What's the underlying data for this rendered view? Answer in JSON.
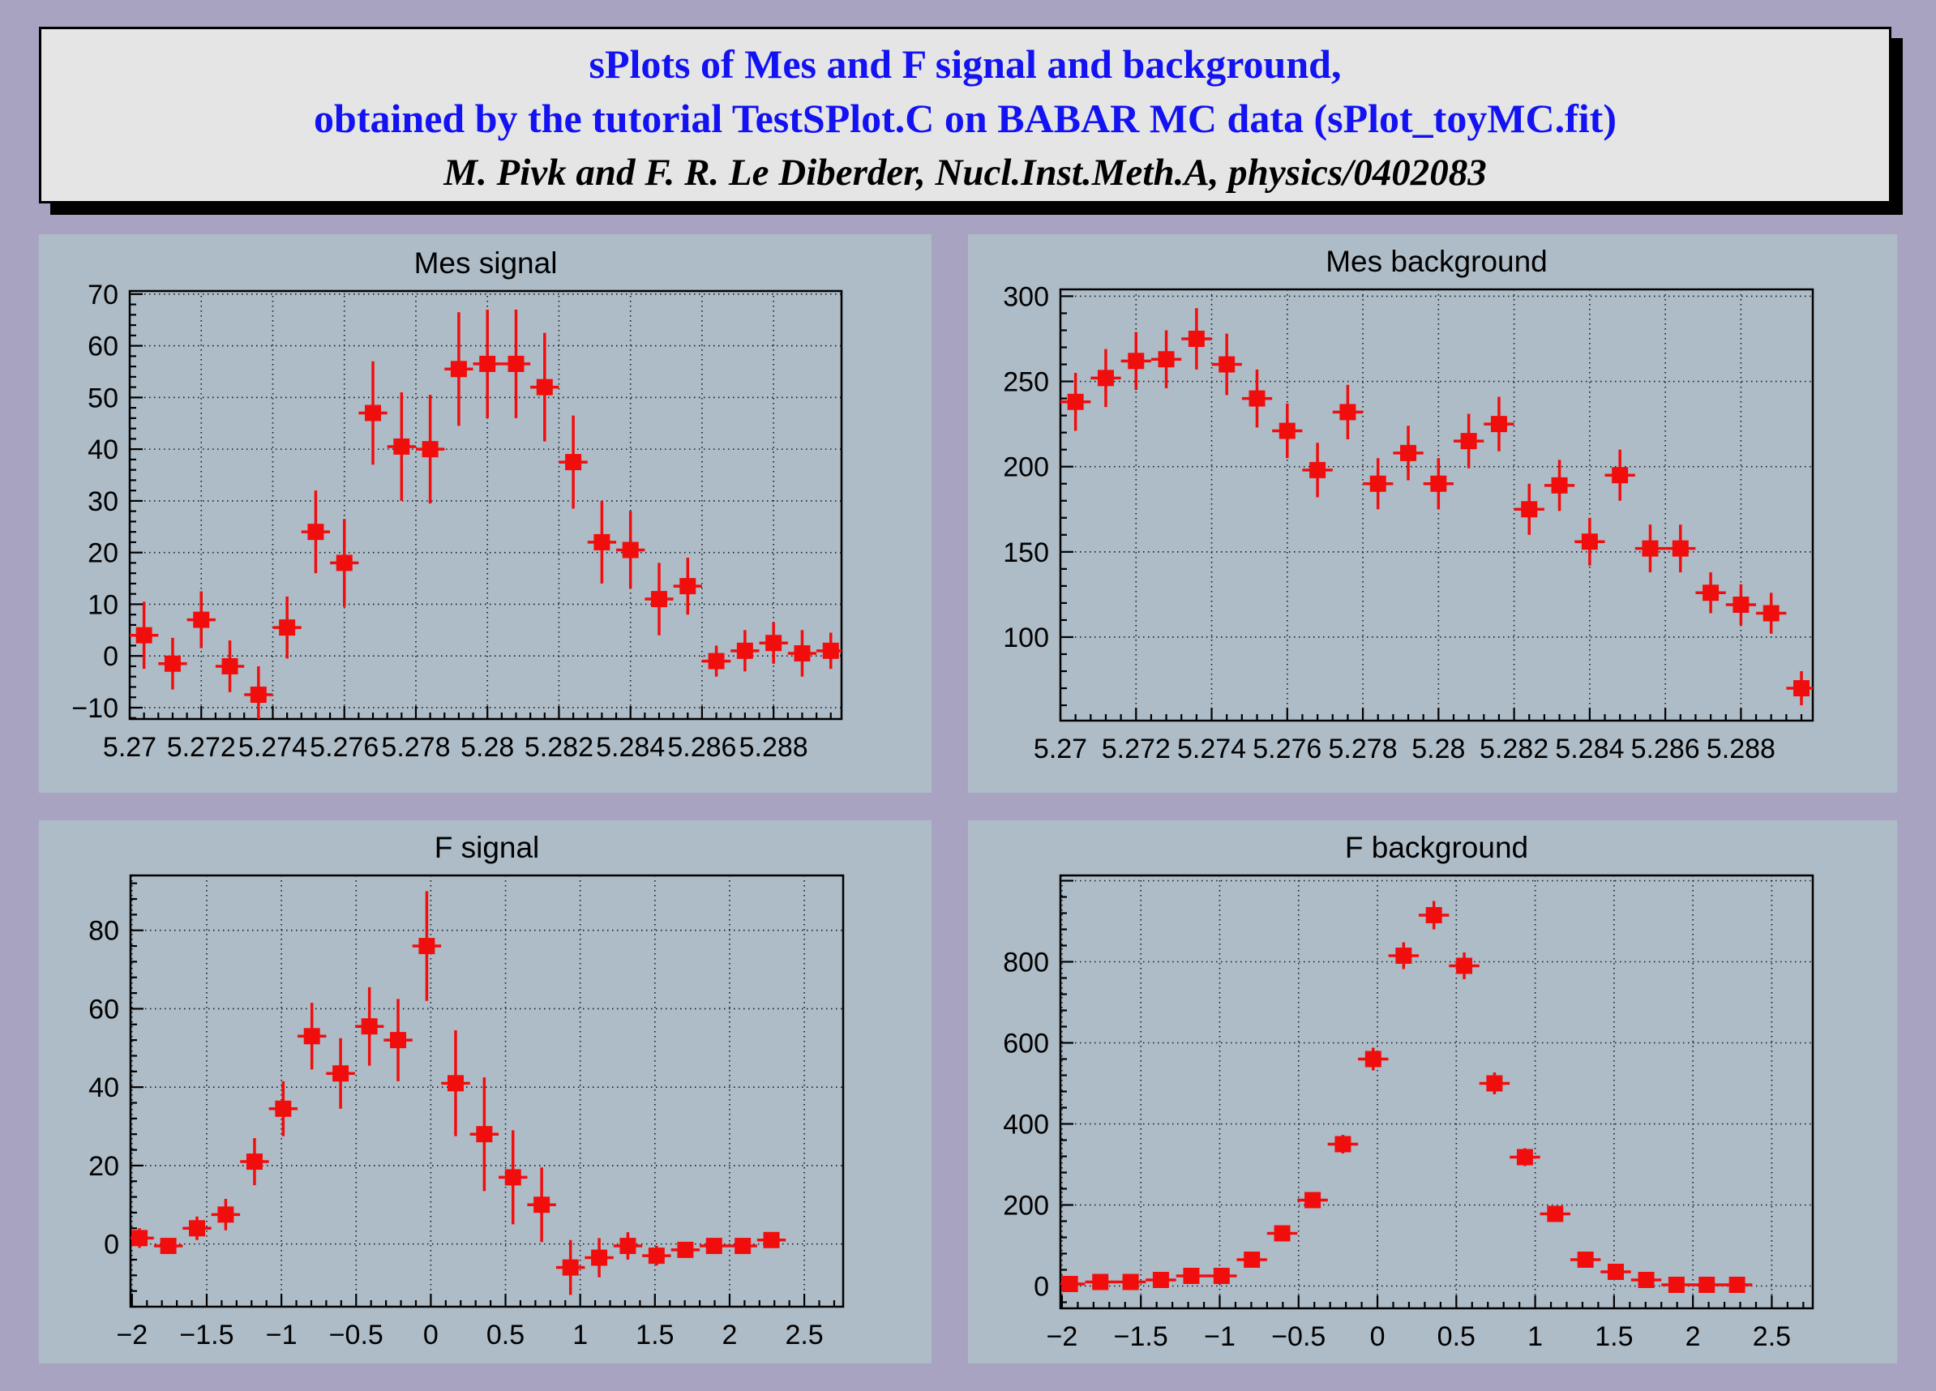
{
  "title_box": {
    "line1": "sPlots of Mes and F signal and background,",
    "line2": "obtained by the tutorial TestSPlot.C on BABAR MC data (sPlot_toyMC.fit)",
    "line3": "M. Pivk and F. R. Le Diberder, Nucl.Inst.Meth.A, physics/0402083"
  },
  "colors": {
    "page_bg": "#a9a3c2",
    "panel_bg": "#aebcc7",
    "box_bg": "#e5e5e5",
    "box_border": "#000000",
    "box_shadow": "#000000",
    "title_text": "#1212f2",
    "credit_text": "#000000",
    "axis": "#000000",
    "grid": "#141821",
    "marker": "#f20d0d"
  },
  "marker": {
    "shape": "square",
    "size": 20,
    "line_width": 3.5
  },
  "chart_data": [
    {
      "id": "mes-signal",
      "type": "scatter",
      "title": "Mes signal",
      "legend": "none",
      "grid": "on",
      "x": {
        "min": 5.27,
        "max": 5.2899,
        "major": 0.002,
        "minor": 0.0004,
        "bin_half_width": 0.0004,
        "labels": [
          [
            "5.27",
            5.27
          ],
          [
            "5.272",
            5.272
          ],
          [
            "5.274",
            5.274
          ],
          [
            "5.276",
            5.276
          ],
          [
            "5.278",
            5.278
          ],
          [
            "5.28",
            5.28
          ],
          [
            "5.282",
            5.282
          ],
          [
            "5.284",
            5.284
          ],
          [
            "5.286",
            5.286
          ],
          [
            "5.288",
            5.288
          ]
        ]
      },
      "y": {
        "min": -12.2,
        "max": 70.6,
        "major": 10,
        "minor": 2,
        "labels": [
          [
            "70",
            70
          ],
          [
            "60",
            60
          ],
          [
            "50",
            50
          ],
          [
            "40",
            40
          ],
          [
            "30",
            30
          ],
          [
            "20",
            20
          ],
          [
            "10",
            10
          ],
          [
            "0",
            0
          ],
          [
            "−10",
            -10
          ]
        ]
      },
      "points": [
        [
          5.2704,
          4,
          6.5
        ],
        [
          5.2712,
          -1.5,
          5
        ],
        [
          5.272,
          7,
          5.5
        ],
        [
          5.2728,
          -2,
          5
        ],
        [
          5.2736,
          -7.5,
          5.5
        ],
        [
          5.2744,
          5.5,
          6
        ],
        [
          5.2752,
          24,
          8
        ],
        [
          5.276,
          18,
          8.5
        ],
        [
          5.2768,
          47,
          10
        ],
        [
          5.2776,
          40.5,
          10.5
        ],
        [
          5.2784,
          40,
          10.5
        ],
        [
          5.2792,
          55.5,
          11
        ],
        [
          5.28,
          56.5,
          10.5
        ],
        [
          5.2808,
          56.5,
          10.5
        ],
        [
          5.2816,
          52,
          10.5
        ],
        [
          5.2824,
          37.5,
          9
        ],
        [
          5.2832,
          22,
          8
        ],
        [
          5.284,
          20.5,
          7.5
        ],
        [
          5.2848,
          11,
          7
        ],
        [
          5.2856,
          13.5,
          5.5
        ],
        [
          5.2864,
          -1,
          3
        ],
        [
          5.2872,
          1,
          4
        ],
        [
          5.288,
          2.5,
          4
        ],
        [
          5.2888,
          0.5,
          4.5
        ],
        [
          5.2896,
          1,
          3.5
        ]
      ]
    },
    {
      "id": "mes-background",
      "type": "scatter",
      "title": "Mes background",
      "legend": "none",
      "grid": "on",
      "x": {
        "min": 5.27,
        "max": 5.2899,
        "major": 0.002,
        "minor": 0.0004,
        "bin_half_width": 0.0004,
        "labels": [
          [
            "5.27",
            5.27
          ],
          [
            "5.272",
            5.272
          ],
          [
            "5.274",
            5.274
          ],
          [
            "5.276",
            5.276
          ],
          [
            "5.278",
            5.278
          ],
          [
            "5.28",
            5.28
          ],
          [
            "5.282",
            5.282
          ],
          [
            "5.284",
            5.284
          ],
          [
            "5.286",
            5.286
          ],
          [
            "5.288",
            5.288
          ]
        ]
      },
      "y": {
        "min": 51,
        "max": 304,
        "major": 50,
        "minor": 10,
        "labels": [
          [
            "300",
            300
          ],
          [
            "250",
            250
          ],
          [
            "200",
            200
          ],
          [
            "150",
            150
          ],
          [
            "100",
            100
          ]
        ]
      },
      "points": [
        [
          5.2704,
          238,
          17
        ],
        [
          5.2712,
          252,
          17
        ],
        [
          5.272,
          262,
          17
        ],
        [
          5.2728,
          263,
          17
        ],
        [
          5.2736,
          275,
          18
        ],
        [
          5.2744,
          260,
          18
        ],
        [
          5.2752,
          240,
          17
        ],
        [
          5.276,
          221,
          16
        ],
        [
          5.2768,
          198,
          16
        ],
        [
          5.2776,
          232,
          16
        ],
        [
          5.2784,
          190,
          15
        ],
        [
          5.2792,
          208,
          16
        ],
        [
          5.28,
          190,
          15
        ],
        [
          5.2808,
          215,
          16
        ],
        [
          5.2816,
          225,
          16
        ],
        [
          5.2824,
          175,
          15
        ],
        [
          5.2832,
          189,
          15
        ],
        [
          5.284,
          156,
          14
        ],
        [
          5.2848,
          195,
          15
        ],
        [
          5.2856,
          152,
          14
        ],
        [
          5.2864,
          152,
          14
        ],
        [
          5.2872,
          126,
          12
        ],
        [
          5.288,
          119,
          12
        ],
        [
          5.2888,
          114,
          12
        ],
        [
          5.2896,
          70,
          10
        ]
      ]
    },
    {
      "id": "f-signal",
      "type": "scatter",
      "title": "F signal",
      "legend": "none",
      "grid": "on",
      "x": {
        "min": -2.01,
        "max": 2.76,
        "major": 0.5,
        "minor": 0.1,
        "bin_half_width": 0.0962,
        "labels": [
          [
            "−2",
            -2
          ],
          [
            "−1.5",
            -1.5
          ],
          [
            "−1",
            -1
          ],
          [
            "−0.5",
            -0.5
          ],
          [
            "0",
            0
          ],
          [
            "0.5",
            0.5
          ],
          [
            "1",
            1
          ],
          [
            "1.5",
            1.5
          ],
          [
            "2",
            2
          ],
          [
            "2.5",
            2.5
          ]
        ]
      },
      "y": {
        "min": -16,
        "max": 94,
        "major": 20,
        "minor": 4,
        "labels": [
          [
            "80",
            80
          ],
          [
            "60",
            60
          ],
          [
            "40",
            40
          ],
          [
            "20",
            20
          ],
          [
            "0",
            0
          ]
        ]
      },
      "points": [
        [
          -1.95,
          1.5,
          2.5
        ],
        [
          -1.757,
          -0.5,
          2
        ],
        [
          -1.565,
          4,
          3
        ],
        [
          -1.373,
          7.5,
          4
        ],
        [
          -1.18,
          21,
          6
        ],
        [
          -0.988,
          34.5,
          7
        ],
        [
          -0.796,
          53,
          8.5
        ],
        [
          -0.604,
          43.5,
          9
        ],
        [
          -0.411,
          55.5,
          10
        ],
        [
          -0.219,
          52,
          10.5
        ],
        [
          -0.027,
          76,
          14
        ],
        [
          0.166,
          41,
          13.5
        ],
        [
          0.358,
          28,
          14.5
        ],
        [
          0.55,
          17,
          12
        ],
        [
          0.742,
          10,
          9.5
        ],
        [
          0.935,
          -6,
          7
        ],
        [
          1.127,
          -3.5,
          5
        ],
        [
          1.319,
          -0.5,
          3.5
        ],
        [
          1.511,
          -3,
          2.5
        ],
        [
          1.704,
          -1.5,
          2
        ],
        [
          1.896,
          -0.5,
          1.5
        ],
        [
          2.088,
          -0.5,
          1.5
        ],
        [
          2.28,
          1,
          1.5
        ]
      ]
    },
    {
      "id": "f-background",
      "type": "scatter",
      "title": "F background",
      "legend": "none",
      "grid": "on",
      "x": {
        "min": -2.01,
        "max": 2.76,
        "major": 0.5,
        "minor": 0.1,
        "bin_half_width": 0.0962,
        "labels": [
          [
            "−2",
            -2
          ],
          [
            "−1.5",
            -1.5
          ],
          [
            "−1",
            -1
          ],
          [
            "−0.5",
            -0.5
          ],
          [
            "0",
            0
          ],
          [
            "0.5",
            0.5
          ],
          [
            "1",
            1
          ],
          [
            "1.5",
            1.5
          ],
          [
            "2",
            2
          ],
          [
            "2.5",
            2.5
          ]
        ]
      },
      "y": {
        "min": -55,
        "max": 1013,
        "major": 200,
        "minor": 40,
        "labels": [
          [
            "800",
            800
          ],
          [
            "600",
            600
          ],
          [
            "400",
            400
          ],
          [
            "200",
            200
          ],
          [
            "0",
            0
          ]
        ]
      },
      "points": [
        [
          -1.95,
          5,
          8
        ],
        [
          -1.757,
          10,
          8
        ],
        [
          -1.565,
          10,
          8
        ],
        [
          -1.373,
          15,
          9
        ],
        [
          -1.18,
          25,
          10
        ],
        [
          -0.988,
          25,
          10
        ],
        [
          -0.796,
          65,
          13
        ],
        [
          -0.604,
          130,
          16
        ],
        [
          -0.411,
          212,
          19
        ],
        [
          -0.219,
          350,
          23
        ],
        [
          -0.027,
          560,
          28
        ],
        [
          0.166,
          815,
          33
        ],
        [
          0.358,
          915,
          35
        ],
        [
          0.55,
          790,
          33
        ],
        [
          0.742,
          500,
          27
        ],
        [
          0.935,
          318,
          22
        ],
        [
          1.127,
          178,
          17
        ],
        [
          1.319,
          65,
          13
        ],
        [
          1.511,
          35,
          10
        ],
        [
          1.704,
          15,
          8
        ],
        [
          1.896,
          3,
          5
        ],
        [
          2.088,
          3,
          5
        ],
        [
          2.28,
          3,
          5
        ]
      ]
    }
  ]
}
